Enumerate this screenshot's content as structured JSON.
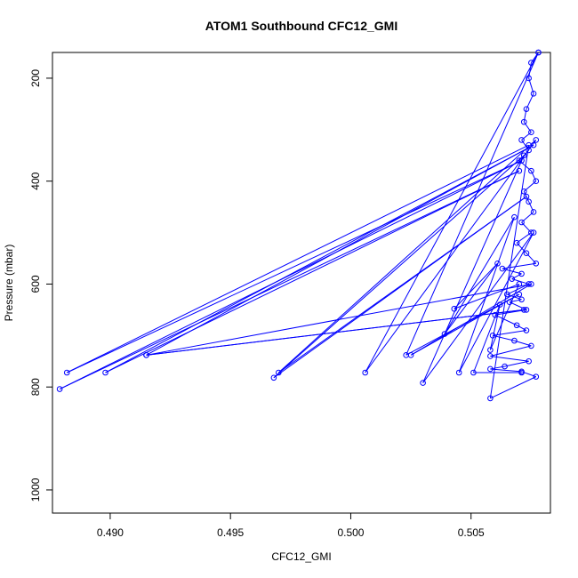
{
  "chart_data": {
    "type": "line",
    "title": "ATOM1 Southbound CFC12_GMI",
    "xlabel": "CFC12_GMI",
    "ylabel": "Pressure (mbar)",
    "xlim": [
      0.4876,
      0.5083
    ],
    "ylim": [
      1045,
      150
    ],
    "y_axis_inverted": true,
    "grid": false,
    "legend": "none",
    "x_ticks": [
      0.49,
      0.495,
      0.5,
      0.505
    ],
    "x_tick_labels": [
      "0.490",
      "0.495",
      "0.500",
      "0.505"
    ],
    "y_ticks": [
      200,
      400,
      600,
      800,
      1000
    ],
    "y_tick_labels": [
      "200",
      "400",
      "600",
      "800",
      "1000"
    ],
    "series_color": "#0000ff",
    "series": [
      {
        "markers": "open-circle",
        "points": [
          [
            0.5078,
            150
          ],
          [
            0.5075,
            170
          ],
          [
            0.5074,
            200
          ],
          [
            0.5076,
            230
          ],
          [
            0.5073,
            260
          ],
          [
            0.5072,
            285
          ],
          [
            0.5075,
            305
          ],
          [
            0.5071,
            320
          ],
          [
            0.5074,
            340
          ],
          [
            0.507,
            360
          ],
          [
            0.5075,
            380
          ],
          [
            0.5077,
            400
          ],
          [
            0.5072,
            420
          ],
          [
            0.5074,
            440
          ],
          [
            0.5076,
            460
          ],
          [
            0.5071,
            480
          ],
          [
            0.5075,
            500
          ],
          [
            0.5069,
            520
          ],
          [
            0.5073,
            540
          ],
          [
            0.5077,
            560
          ],
          [
            0.5063,
            570
          ],
          [
            0.5071,
            580
          ],
          [
            0.5067,
            590
          ],
          [
            0.5074,
            600
          ],
          [
            0.5065,
            620
          ],
          [
            0.5071,
            630
          ],
          [
            0.5066,
            635
          ],
          [
            0.5073,
            650
          ],
          [
            0.506,
            660
          ],
          [
            0.5069,
            680
          ],
          [
            0.5073,
            690
          ],
          [
            0.5059,
            700
          ],
          [
            0.5068,
            710
          ],
          [
            0.5075,
            720
          ],
          [
            0.5058,
            740
          ],
          [
            0.5074,
            750
          ],
          [
            0.5064,
            760
          ],
          [
            0.5058,
            765
          ],
          [
            0.5071,
            770
          ],
          [
            0.5077,
            780
          ],
          [
            0.5058,
            822
          ],
          [
            0.5074,
            330
          ],
          [
            0.4882,
            772
          ],
          [
            0.5071,
            360
          ],
          [
            0.4879,
            804
          ],
          [
            0.507,
            380
          ],
          [
            0.4898,
            772
          ],
          [
            0.5076,
            330
          ],
          [
            0.4915,
            738
          ],
          [
            0.5072,
            650
          ],
          [
            0.4915,
            738
          ],
          [
            0.5075,
            600
          ],
          [
            0.5025,
            738
          ],
          [
            0.507,
            620
          ],
          [
            0.5023,
            738
          ],
          [
            0.5078,
            150
          ],
          [
            0.5006,
            772
          ],
          [
            0.5077,
            320
          ],
          [
            0.497,
            772
          ],
          [
            0.5073,
            430
          ],
          [
            0.4968,
            782
          ],
          [
            0.5072,
            350
          ],
          [
            0.503,
            792
          ],
          [
            0.5076,
            500
          ],
          [
            0.5045,
            772
          ],
          [
            0.5068,
            470
          ],
          [
            0.5039,
            697
          ],
          [
            0.5061,
            560
          ],
          [
            0.5043,
            648
          ],
          [
            0.507,
            600
          ],
          [
            0.5058,
            728
          ],
          [
            0.5062,
            640
          ],
          [
            0.5051,
            772
          ],
          [
            0.5071,
            772
          ]
        ]
      }
    ]
  }
}
